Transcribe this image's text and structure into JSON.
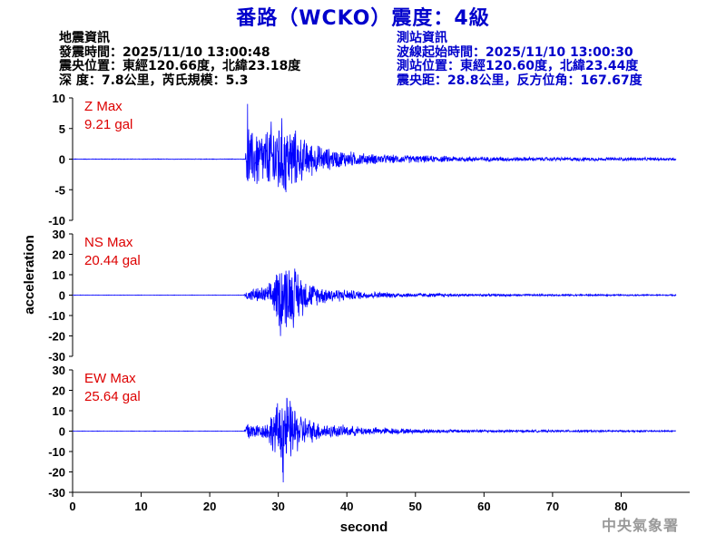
{
  "title": "番路（WCKO）震度：4級",
  "quake_info": {
    "heading": "地震資訊",
    "origin_time": "發震時間：2025/11/10 13:00:48",
    "epicenter": "震央位置：東經120.66度，北緯23.18度",
    "depth_magnitude": "深  度：7.8公里，芮氏規模：5.3"
  },
  "station_info": {
    "heading": "測站資訊",
    "wave_start": "波線起始時間：2025/11/10 13:00:30",
    "station_location": "測站位置：東經120.60度，北緯23.44度",
    "distance": "震央距：28.8公里，反方位角：167.67度"
  },
  "watermark": "中央氣象署",
  "chart_data": {
    "type": "line",
    "xlabel": "second",
    "ylabel": "acceleration",
    "xlim": [
      0,
      90
    ],
    "xticks": [
      0,
      10,
      20,
      30,
      40,
      50,
      60,
      70,
      80
    ],
    "line_color": "#0000ff",
    "panels": [
      {
        "name": "Z",
        "max_label": "Z Max",
        "max_value": "9.21 gal",
        "ylim": [
          -10,
          10
        ],
        "yticks": [
          10,
          5,
          0,
          -5,
          -10
        ],
        "peak": 9.21,
        "envelope": [
          [
            0,
            0.05
          ],
          [
            25.2,
            0.05
          ],
          [
            25.5,
            8.5
          ],
          [
            26,
            5
          ],
          [
            27,
            6
          ],
          [
            28,
            5
          ],
          [
            29,
            7
          ],
          [
            30,
            8
          ],
          [
            31,
            7
          ],
          [
            32,
            6
          ],
          [
            33,
            4.5
          ],
          [
            34,
            3.5
          ],
          [
            36,
            2.5
          ],
          [
            38,
            1.8
          ],
          [
            40,
            1.5
          ],
          [
            43,
            1
          ],
          [
            46,
            0.8
          ],
          [
            50,
            0.7
          ],
          [
            55,
            0.55
          ],
          [
            60,
            0.45
          ],
          [
            70,
            0.35
          ],
          [
            80,
            0.3
          ],
          [
            88,
            0.25
          ]
        ]
      },
      {
        "name": "NS",
        "max_label": "NS Max",
        "max_value": "20.44 gal",
        "ylim": [
          -30,
          30
        ],
        "yticks": [
          30,
          20,
          10,
          0,
          -10,
          -20,
          -30
        ],
        "peak": 20.44,
        "envelope": [
          [
            0,
            0.1
          ],
          [
            25,
            0.1
          ],
          [
            25.5,
            3
          ],
          [
            27,
            4
          ],
          [
            28.5,
            5
          ],
          [
            29.5,
            12
          ],
          [
            30.5,
            20
          ],
          [
            31.5,
            19
          ],
          [
            32.5,
            16
          ],
          [
            33.5,
            11
          ],
          [
            34.5,
            7
          ],
          [
            36,
            5
          ],
          [
            38,
            4
          ],
          [
            40,
            3
          ],
          [
            43,
            2
          ],
          [
            46,
            1.5
          ],
          [
            50,
            1.2
          ],
          [
            55,
            0.9
          ],
          [
            60,
            0.7
          ],
          [
            70,
            0.5
          ],
          [
            80,
            0.4
          ],
          [
            88,
            0.35
          ]
        ]
      },
      {
        "name": "EW",
        "max_label": "EW Max",
        "max_value": "25.64 gal",
        "ylim": [
          -30,
          30
        ],
        "yticks": [
          30,
          20,
          10,
          0,
          -10,
          -20,
          -30
        ],
        "peak": 25.64,
        "envelope": [
          [
            0,
            0.1
          ],
          [
            25,
            0.1
          ],
          [
            25.5,
            7
          ],
          [
            26.5,
            4
          ],
          [
            28,
            4
          ],
          [
            29,
            10
          ],
          [
            30,
            16
          ],
          [
            30.8,
            24
          ],
          [
            31.5,
            18
          ],
          [
            32.5,
            13
          ],
          [
            33.5,
            9
          ],
          [
            35,
            6
          ],
          [
            37,
            4
          ],
          [
            40,
            3
          ],
          [
            43,
            2.2
          ],
          [
            46,
            1.8
          ],
          [
            50,
            1.3
          ],
          [
            55,
            1
          ],
          [
            60,
            0.8
          ],
          [
            70,
            0.6
          ],
          [
            80,
            0.5
          ],
          [
            88,
            0.4
          ]
        ]
      }
    ]
  }
}
